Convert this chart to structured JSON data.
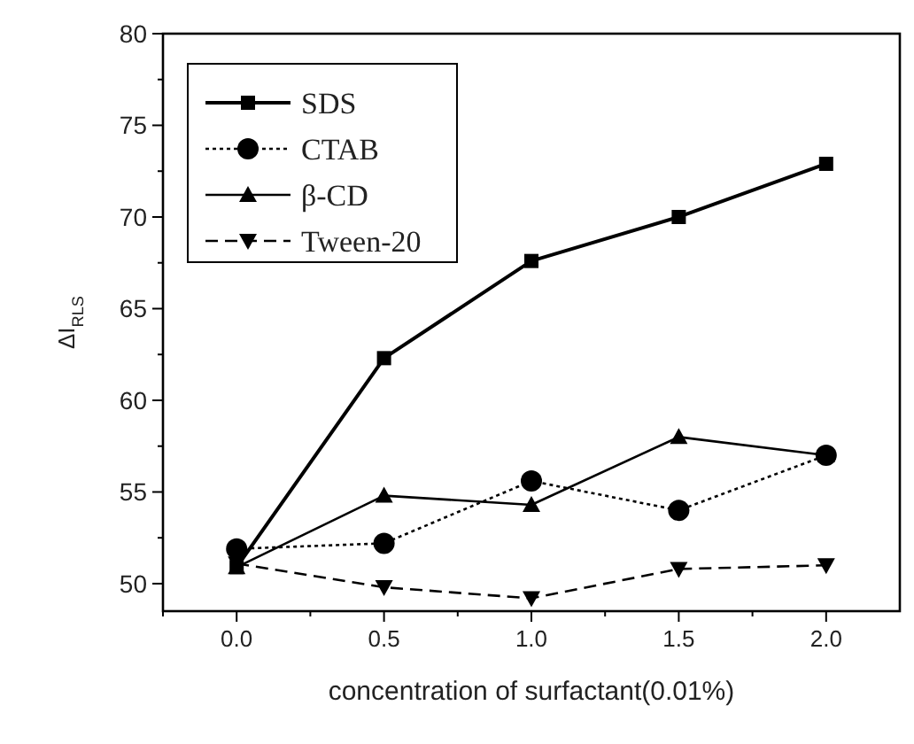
{
  "chart_data": {
    "type": "line",
    "xlabel": "concentration of surfactant(0.01%)",
    "ylabel": "ΔI$_{RLS}$",
    "x": [
      0,
      0.5,
      1,
      1.5,
      2
    ],
    "series": [
      {
        "name": "SDS",
        "color": "#000000",
        "values": [
          50.9,
          62.3,
          67.6,
          70.0,
          72.9
        ],
        "marker": "square",
        "line_style": "solid"
      },
      {
        "name": "CTAB",
        "color": "#000000",
        "values": [
          51.9,
          52.2,
          55.6,
          54.0,
          57.0
        ],
        "marker": "circle",
        "line_style": "dotted"
      },
      {
        "name": "β-CD",
        "color": "#000000",
        "values": [
          50.9,
          54.8,
          54.3,
          58.0,
          57.0
        ],
        "marker": "triangle",
        "line_style": "solid"
      },
      {
        "name": "Tween-20",
        "color": "#000000",
        "values": [
          51.1,
          49.8,
          49.2,
          50.8,
          51.0
        ],
        "marker": "triangle-down",
        "line_style": "dashed"
      }
    ],
    "xlim": [
      -0.25,
      2.25
    ],
    "ylim": [
      48.5,
      80
    ],
    "xticks": [
      {
        "value": -0.25,
        "label": null
      },
      "0.0",
      {
        "value": 0.25,
        "label": null
      },
      {
        "value": 0.5,
        "label": "0.5"
      },
      {
        "value": 0.75,
        "label": null
      },
      {
        "value": 1,
        "label": "1.0"
      },
      {
        "value": 1.25,
        "label": null
      },
      {
        "value": 1.5,
        "label": "1.5"
      },
      {
        "value": 1.75,
        "label": null
      },
      {
        "value": 2,
        "label": "2.0"
      }
    ],
    "yticks": [
      50,
      {
        "value": 52.5,
        "label": null
      },
      55,
      {
        "value": 57.5,
        "label": null
      },
      60,
      {
        "value": 62.5,
        "label": null
      },
      65,
      {
        "value": 67.5,
        "label": null
      },
      70,
      {
        "value": 72.5,
        "label": null
      },
      75,
      {
        "value": 77.5,
        "label": null
      },
      80
    ],
    "legend": "top left",
    "grid": false
  }
}
